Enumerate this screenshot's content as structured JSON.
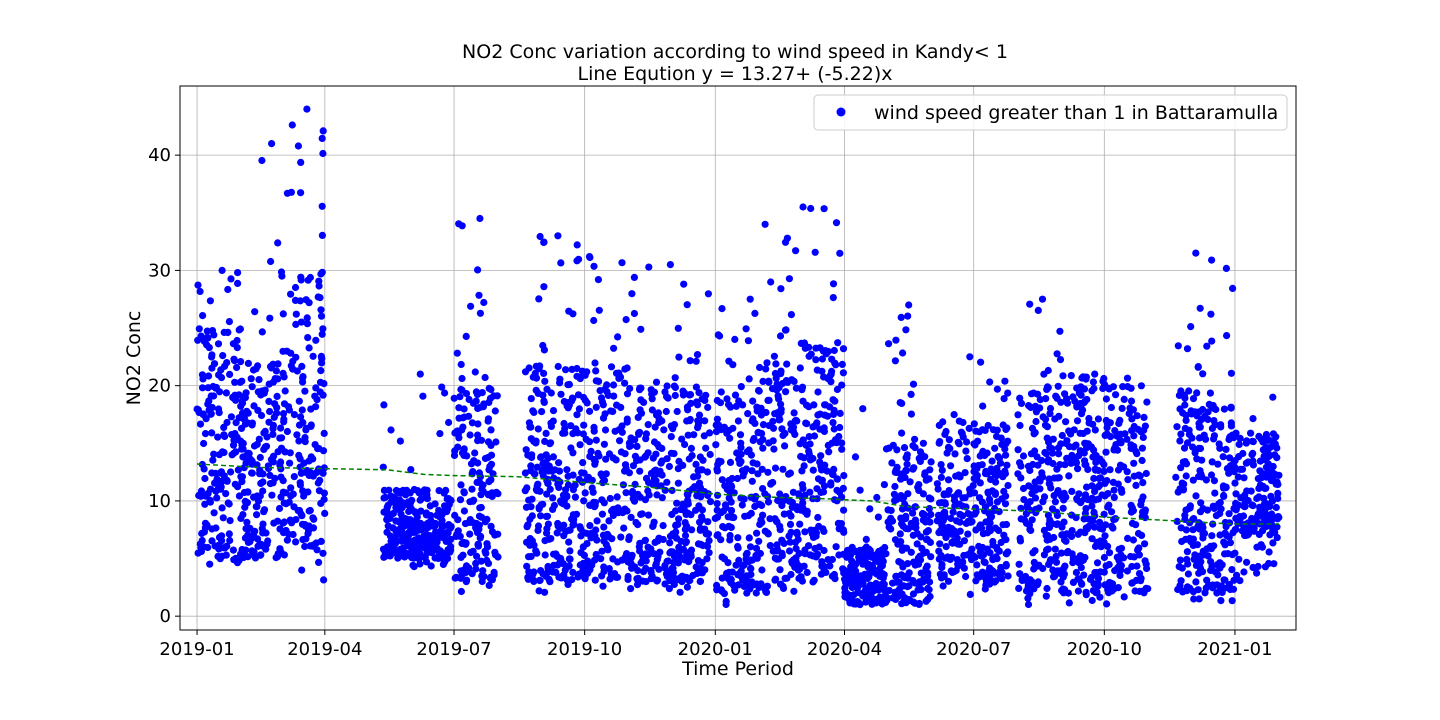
{
  "chart_data": {
    "type": "scatter",
    "title": "NO2 Conc variation according to wind speed in Kandy< 1",
    "subtitle": "Line Eqution y = 13.27+ (-5.22)x",
    "xlabel": "Time Period",
    "ylabel": "NO2 Conc",
    "xlim": [
      "2018-12-20",
      "2021-02-13"
    ],
    "ylim": [
      -1.2,
      46
    ],
    "grid": true,
    "legend_position": "top-right",
    "x_ticks": [
      "2019-01",
      "2019-04",
      "2019-07",
      "2019-10",
      "2020-01",
      "2020-04",
      "2020-07",
      "2020-10",
      "2021-01"
    ],
    "y_ticks": [
      0,
      10,
      20,
      30,
      40
    ],
    "colors": {
      "points": "#0000ff",
      "trend": "#008000"
    },
    "series": [
      {
        "name": "wind speed greater than 1 in Battaramulla",
        "kind": "scatter",
        "clusters": [
          {
            "start": "2019-01-01",
            "end": "2019-01-31",
            "ymin": 4.5,
            "ymax": 30,
            "dense_min": 5,
            "dense_max": 25
          },
          {
            "start": "2019-02-01",
            "end": "2019-02-28",
            "ymin": 4.5,
            "ymax": 41,
            "dense_min": 5,
            "dense_max": 22
          },
          {
            "start": "2019-03-01",
            "end": "2019-03-31",
            "ymin": 3,
            "ymax": 44,
            "dense_min": 6,
            "dense_max": 30
          },
          {
            "start": "2019-05-12",
            "end": "2019-06-28",
            "ymin": 4,
            "ymax": 21,
            "dense_min": 5,
            "dense_max": 11
          },
          {
            "start": "2019-07-01",
            "end": "2019-07-31",
            "ymin": 2,
            "ymax": 34.5,
            "dense_min": 3,
            "dense_max": 20
          },
          {
            "start": "2019-08-20",
            "end": "2019-10-31",
            "ymin": 2,
            "ymax": 33,
            "dense_min": 3,
            "dense_max": 22
          },
          {
            "start": "2019-11-01",
            "end": "2019-12-28",
            "ymin": 2,
            "ymax": 30.5,
            "dense_min": 3,
            "dense_max": 20
          },
          {
            "start": "2020-01-01",
            "end": "2020-01-31",
            "ymin": 1,
            "ymax": 27.5,
            "dense_min": 2,
            "dense_max": 20
          },
          {
            "start": "2020-02-01",
            "end": "2020-02-29",
            "ymin": 1.5,
            "ymax": 34,
            "dense_min": 2,
            "dense_max": 22
          },
          {
            "start": "2020-03-01",
            "end": "2020-03-31",
            "ymin": 2,
            "ymax": 35.5,
            "dense_min": 3,
            "dense_max": 24
          },
          {
            "start": "2020-04-01",
            "end": "2020-04-30",
            "ymin": 1,
            "ymax": 18,
            "dense_min": 1,
            "dense_max": 6
          },
          {
            "start": "2020-05-01",
            "end": "2020-05-31",
            "ymin": 1,
            "ymax": 27,
            "dense_min": 1,
            "dense_max": 15
          },
          {
            "start": "2020-06-05",
            "end": "2020-07-25",
            "ymin": 1.5,
            "ymax": 22.5,
            "dense_min": 3,
            "dense_max": 17
          },
          {
            "start": "2020-08-01",
            "end": "2020-08-31",
            "ymin": 1,
            "ymax": 27.5,
            "dense_min": 2,
            "dense_max": 20
          },
          {
            "start": "2020-09-01",
            "end": "2020-10-31",
            "ymin": 1,
            "ymax": 21,
            "dense_min": 2,
            "dense_max": 19
          },
          {
            "start": "2020-11-20",
            "end": "2020-12-31",
            "ymin": 1,
            "ymax": 31.5,
            "dense_min": 2,
            "dense_max": 20
          },
          {
            "start": "2021-01-01",
            "end": "2021-01-31",
            "ymin": 3,
            "ymax": 19,
            "dense_min": 7,
            "dense_max": 16
          }
        ]
      },
      {
        "name": "",
        "kind": "line",
        "style": "dashed",
        "points": [
          [
            "2019-01-01",
            13.2
          ],
          [
            "2019-02-15",
            12.9
          ],
          [
            "2019-04-01",
            12.8
          ],
          [
            "2019-05-15",
            12.7
          ],
          [
            "2019-06-10",
            12.3
          ],
          [
            "2019-07-01",
            12.2
          ],
          [
            "2019-08-15",
            12.1
          ],
          [
            "2019-10-01",
            11.6
          ],
          [
            "2019-11-15",
            11.2
          ],
          [
            "2020-01-01",
            10.6
          ],
          [
            "2020-02-15",
            10.3
          ],
          [
            "2020-03-15",
            10.2
          ],
          [
            "2020-04-20",
            10.0
          ],
          [
            "2020-05-15",
            9.5
          ],
          [
            "2020-07-01",
            9.3
          ],
          [
            "2020-08-15",
            9.1
          ],
          [
            "2020-10-01",
            8.6
          ],
          [
            "2020-11-15",
            8.3
          ],
          [
            "2020-12-31",
            8.0
          ],
          [
            "2021-02-01",
            8.0
          ]
        ]
      }
    ]
  }
}
